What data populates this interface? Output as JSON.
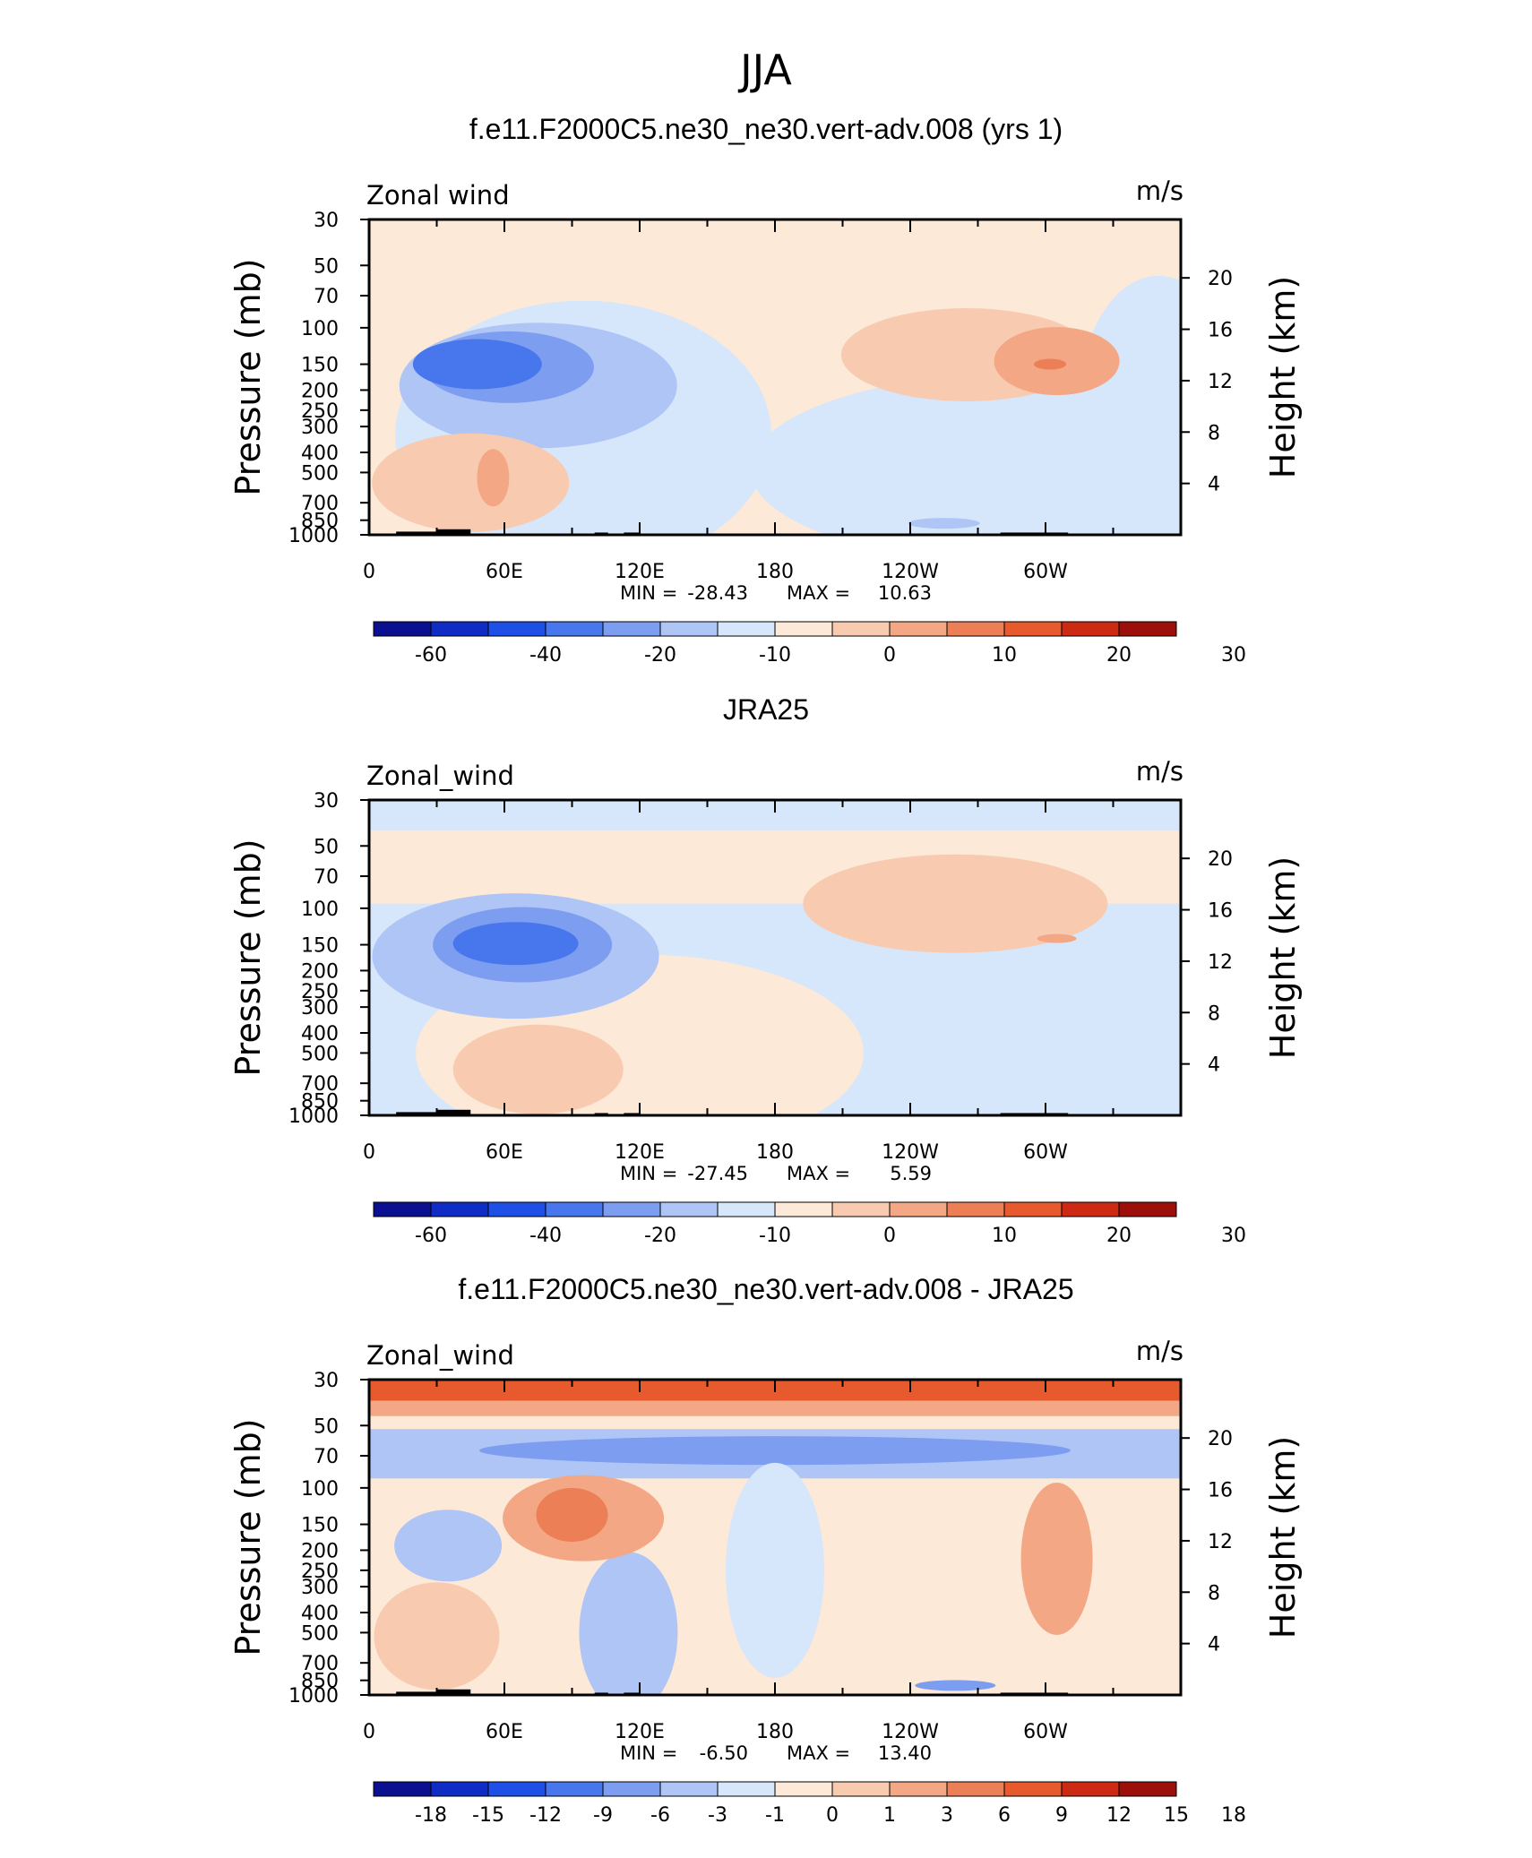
{
  "figure": {
    "title": "JJA",
    "colors": {
      "blue_scale": [
        "#0a1090",
        "#0f2cc4",
        "#1f50e6",
        "#4876ec",
        "#7d9ef0",
        "#aec5f6",
        "#d6e6fb"
      ],
      "red_scale": [
        "#fde9d8",
        "#f8cbb1",
        "#f3a785",
        "#ec7f55",
        "#e65a2d",
        "#cc2a12",
        "#9c0f0b"
      ],
      "land": "#000000"
    }
  },
  "chart_data": [
    {
      "type": "heatmap",
      "title": "f.e11.F2000C5.ne30_ne30.vert-adv.008 (yrs 1)",
      "variable": "Zonal wind",
      "units": "m/s",
      "ylabel": "Pressure (mb)",
      "ylabel_right": "Height (km)",
      "pressure_ticks": [
        "30",
        "50",
        "70",
        "100",
        "150",
        "200",
        "250",
        "300",
        "400",
        "500",
        "700",
        "850",
        "1000"
      ],
      "height_ticks": [
        "20",
        "16",
        "12",
        "8",
        "4"
      ],
      "x_ticks": [
        "0",
        "60E",
        "120E",
        "180",
        "120W",
        "60W"
      ],
      "min_label": "MIN =",
      "min": "-28.43",
      "max_label": "MAX =",
      "max": "10.63",
      "colorbar_labels": [
        "-60",
        "-40",
        "-20",
        "-10",
        "0",
        "10",
        "20",
        "30"
      ],
      "features": [
        {
          "kind": "negative",
          "lon": 65,
          "p": 150,
          "value": -25
        },
        {
          "kind": "negative",
          "lon": 80,
          "p": 250,
          "value": -12
        },
        {
          "kind": "positive",
          "lon": 297,
          "p": 150,
          "value": 10
        },
        {
          "kind": "positive",
          "lon": 55,
          "p": 550,
          "value": 7
        },
        {
          "kind": "negative",
          "lon": 265,
          "p": 900,
          "value": -5
        }
      ]
    },
    {
      "type": "heatmap",
      "title": "JRA25",
      "variable": "Zonal_wind",
      "units": "m/s",
      "ylabel": "Pressure (mb)",
      "ylabel_right": "Height (km)",
      "pressure_ticks": [
        "30",
        "50",
        "70",
        "100",
        "150",
        "200",
        "250",
        "300",
        "400",
        "500",
        "700",
        "850",
        "1000"
      ],
      "height_ticks": [
        "20",
        "16",
        "12",
        "8",
        "4"
      ],
      "x_ticks": [
        "0",
        "60E",
        "120E",
        "180",
        "120W",
        "60W"
      ],
      "min_label": "MIN =",
      "min": "-27.45",
      "max_label": "MAX =",
      "max": "5.59",
      "colorbar_labels": [
        "-60",
        "-40",
        "-20",
        "-10",
        "0",
        "10",
        "20",
        "30"
      ],
      "features": [
        {
          "kind": "negative",
          "lon": 75,
          "p": 150,
          "value": -25
        },
        {
          "kind": "negative",
          "lon": 90,
          "p": 250,
          "value": -12
        },
        {
          "kind": "positive",
          "lon": 230,
          "p": 100,
          "value": 5
        },
        {
          "kind": "positive",
          "lon": 80,
          "p": 600,
          "value": 5
        },
        {
          "kind": "negative",
          "lon": 180,
          "p": 35,
          "value": -5
        }
      ]
    },
    {
      "type": "heatmap",
      "title": "f.e11.F2000C5.ne30_ne30.vert-adv.008 - JRA25",
      "variable": "Zonal_wind",
      "units": "m/s",
      "ylabel": "Pressure (mb)",
      "ylabel_right": "Height (km)",
      "pressure_ticks": [
        "30",
        "50",
        "70",
        "100",
        "150",
        "200",
        "250",
        "300",
        "400",
        "500",
        "700",
        "850",
        "1000"
      ],
      "height_ticks": [
        "20",
        "16",
        "12",
        "8",
        "4"
      ],
      "x_ticks": [
        "0",
        "60E",
        "120E",
        "180",
        "120W",
        "60W"
      ],
      "min_label": "MIN =",
      "min": "-6.50",
      "max_label": "MAX =",
      "max": "13.40",
      "colorbar_labels": [
        "-18",
        "-15",
        "-12",
        "-9",
        "-6",
        "-3",
        "-1",
        "0",
        "1",
        "3",
        "6",
        "9",
        "12",
        "15",
        "18"
      ],
      "features": [
        {
          "kind": "positive",
          "lon": 180,
          "p": 30,
          "value": 13
        },
        {
          "kind": "negative",
          "lon": 180,
          "p": 60,
          "value": -4
        },
        {
          "kind": "positive",
          "lon": 95,
          "p": 130,
          "value": 8
        },
        {
          "kind": "negative",
          "lon": 180,
          "p": 220,
          "value": -3
        },
        {
          "kind": "positive",
          "lon": 305,
          "p": 200,
          "value": 4
        },
        {
          "kind": "negative",
          "lon": 30,
          "p": 180,
          "value": -4
        }
      ]
    }
  ]
}
